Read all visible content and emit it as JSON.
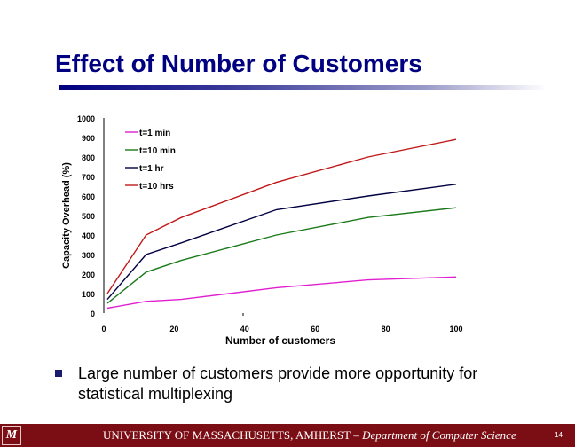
{
  "slide": {
    "title": "Effect of Number of Customers",
    "bullet": "Large number of customers provide more opportunity for statistical multiplexing",
    "footer": {
      "logo_text": "M",
      "institution": "UNIVERSITY OF MASSACHUSETTS, AMHERST",
      "department": " – Department of Computer Science",
      "page_number": "14"
    }
  },
  "chart_data": {
    "type": "line",
    "title": "",
    "xlabel": "Number of customers",
    "ylabel": "Capacity Overhead (%)",
    "xlim": [
      0,
      100
    ],
    "ylim": [
      0,
      1000
    ],
    "x_ticks": [
      0,
      20,
      40,
      60,
      80,
      100
    ],
    "y_ticks": [
      0,
      100,
      200,
      300,
      400,
      500,
      600,
      700,
      800,
      900,
      1000
    ],
    "grid": false,
    "legend_position": "top-left",
    "x": [
      1,
      12,
      22,
      49,
      75,
      100
    ],
    "series": [
      {
        "name": "t=1 min",
        "color": "#e020d0",
        "values": [
          25,
          60,
          70,
          130,
          170,
          185
        ]
      },
      {
        "name": "t=10 min",
        "color": "#1a7a1a",
        "values": [
          50,
          210,
          270,
          400,
          490,
          540
        ]
      },
      {
        "name": "t=1 hr",
        "color": "#000040",
        "values": [
          70,
          300,
          360,
          530,
          600,
          660
        ]
      },
      {
        "name": "t=10 hrs",
        "color": "#c01818",
        "values": [
          100,
          400,
          490,
          670,
          800,
          890
        ]
      }
    ]
  }
}
